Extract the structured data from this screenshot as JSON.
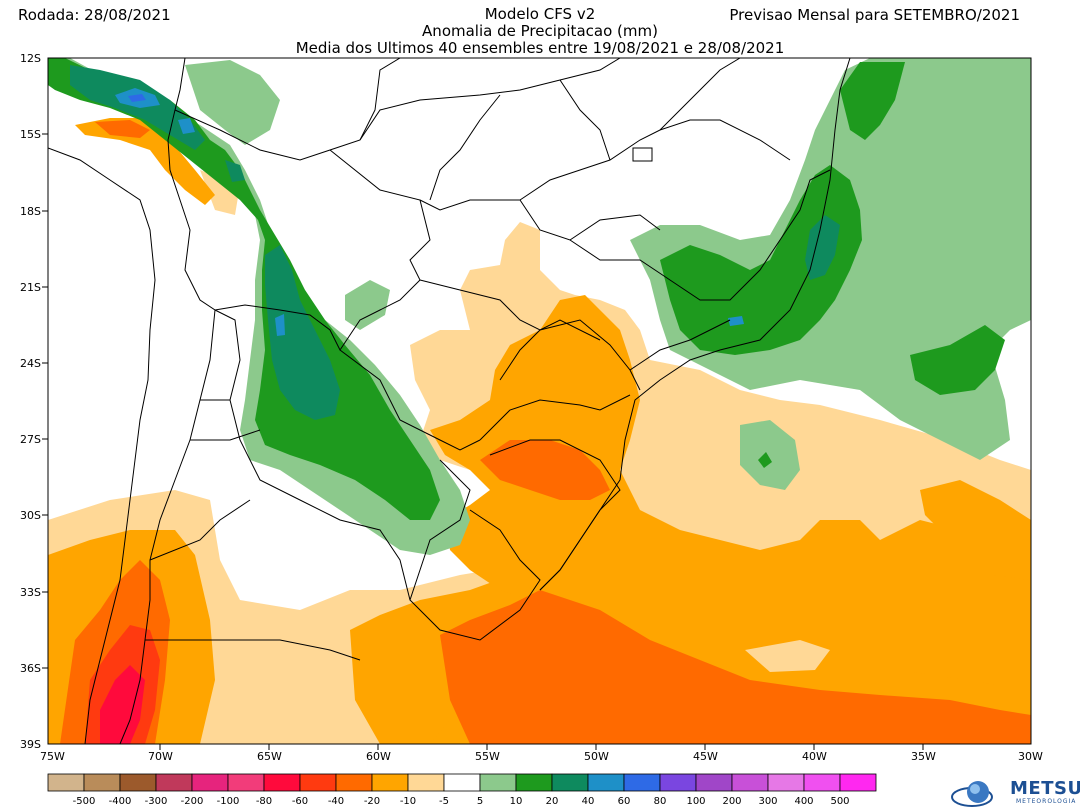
{
  "header": {
    "run_date": "Rodada: 28/08/2021",
    "model": "Modelo CFS v2",
    "variable": "Anomalia de Precipitacao (mm)",
    "ensemble": "Media dos Ultimos 40 ensembles entre 19/08/2021 e 28/08/2021",
    "forecast": "Previsao Mensal para SETEMBRO/2021"
  },
  "axes": {
    "lat_labels": [
      "12S",
      "15S",
      "18S",
      "21S",
      "24S",
      "27S",
      "30S",
      "33S",
      "36S",
      "39S"
    ],
    "lon_labels": [
      "75W",
      "70W",
      "65W",
      "60W",
      "55W",
      "50W",
      "45W",
      "40W",
      "35W",
      "30W"
    ]
  },
  "colorbar": {
    "colors": [
      "#d2b48c",
      "#b98c5a",
      "#9c5a2c",
      "#c0395b",
      "#e6247d",
      "#f23c7a",
      "#ff0a3c",
      "#ff3a10",
      "#ff6a00",
      "#ffa500",
      "#ffd896",
      "#ffffff",
      "#8cc98c",
      "#1e9a1e",
      "#0e8a5e",
      "#1e90c8",
      "#2e6ae6",
      "#7a46e0",
      "#a046c8",
      "#c850d8",
      "#e678e6",
      "#f050f0",
      "#ff28f0"
    ],
    "labels": [
      "-500",
      "-400",
      "-300",
      "-200",
      "-100",
      "-80",
      "-60",
      "-40",
      "-20",
      "-10",
      "-5",
      "5",
      "10",
      "20",
      "40",
      "60",
      "80",
      "100",
      "200",
      "300",
      "400",
      "500"
    ]
  },
  "logo": {
    "name": "METSUL",
    "subtitle": "METEOROLOGIA"
  }
}
